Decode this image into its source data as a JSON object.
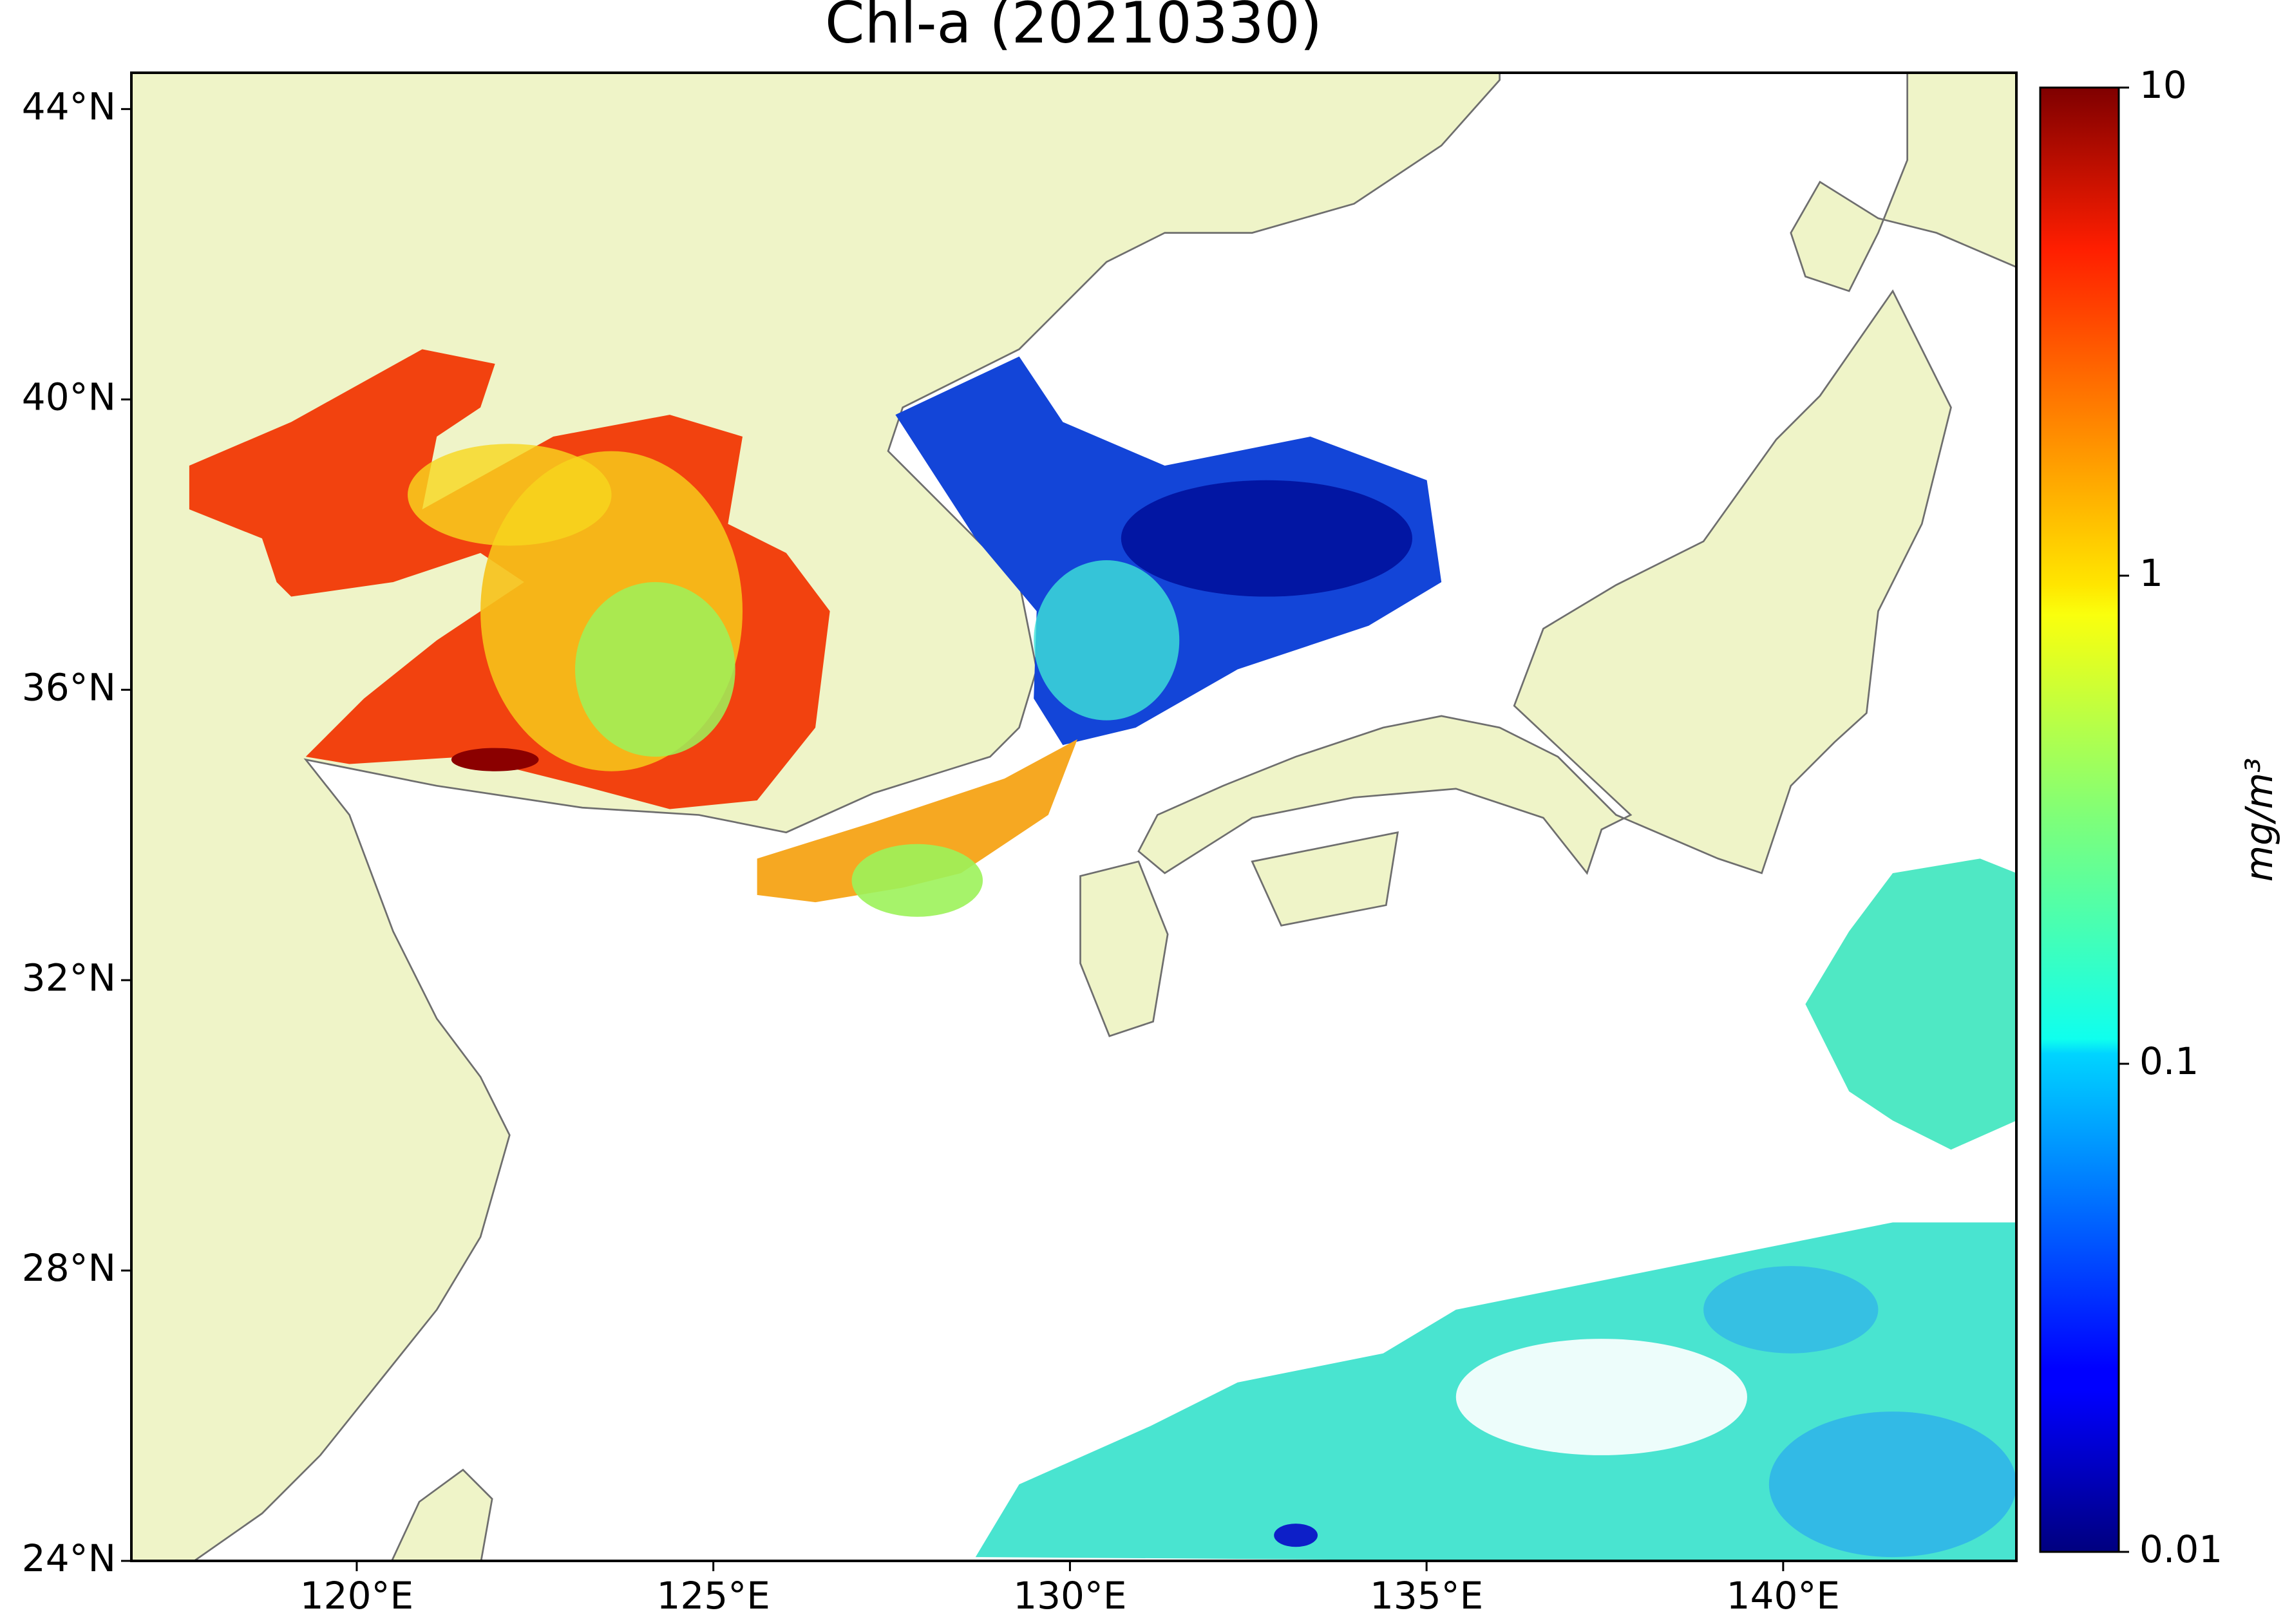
{
  "chart_data": {
    "type": "map",
    "title": "Chl-a (20210330)",
    "xlim": [
      116.84,
      143.27
    ],
    "ylim": [
      24,
      44.5
    ],
    "xticks": [
      {
        "value": 120,
        "label": "120°E"
      },
      {
        "value": 125,
        "label": "125°E"
      },
      {
        "value": 130,
        "label": "130°E"
      },
      {
        "value": 135,
        "label": "135°E"
      },
      {
        "value": 140,
        "label": "140°E"
      }
    ],
    "yticks": [
      {
        "value": 24,
        "label": "24°N"
      },
      {
        "value": 28,
        "label": "28°N"
      },
      {
        "value": 32,
        "label": "32°N"
      },
      {
        "value": 36,
        "label": "36°N"
      },
      {
        "value": 40,
        "label": "40°N"
      },
      {
        "value": 44,
        "label": "44°N"
      }
    ],
    "colorbar": {
      "label": "mg/m³",
      "lim": [
        0.01,
        10
      ],
      "log": true,
      "colormap": "jet",
      "ticks": [
        10,
        1,
        0.1,
        0.01
      ]
    }
  }
}
